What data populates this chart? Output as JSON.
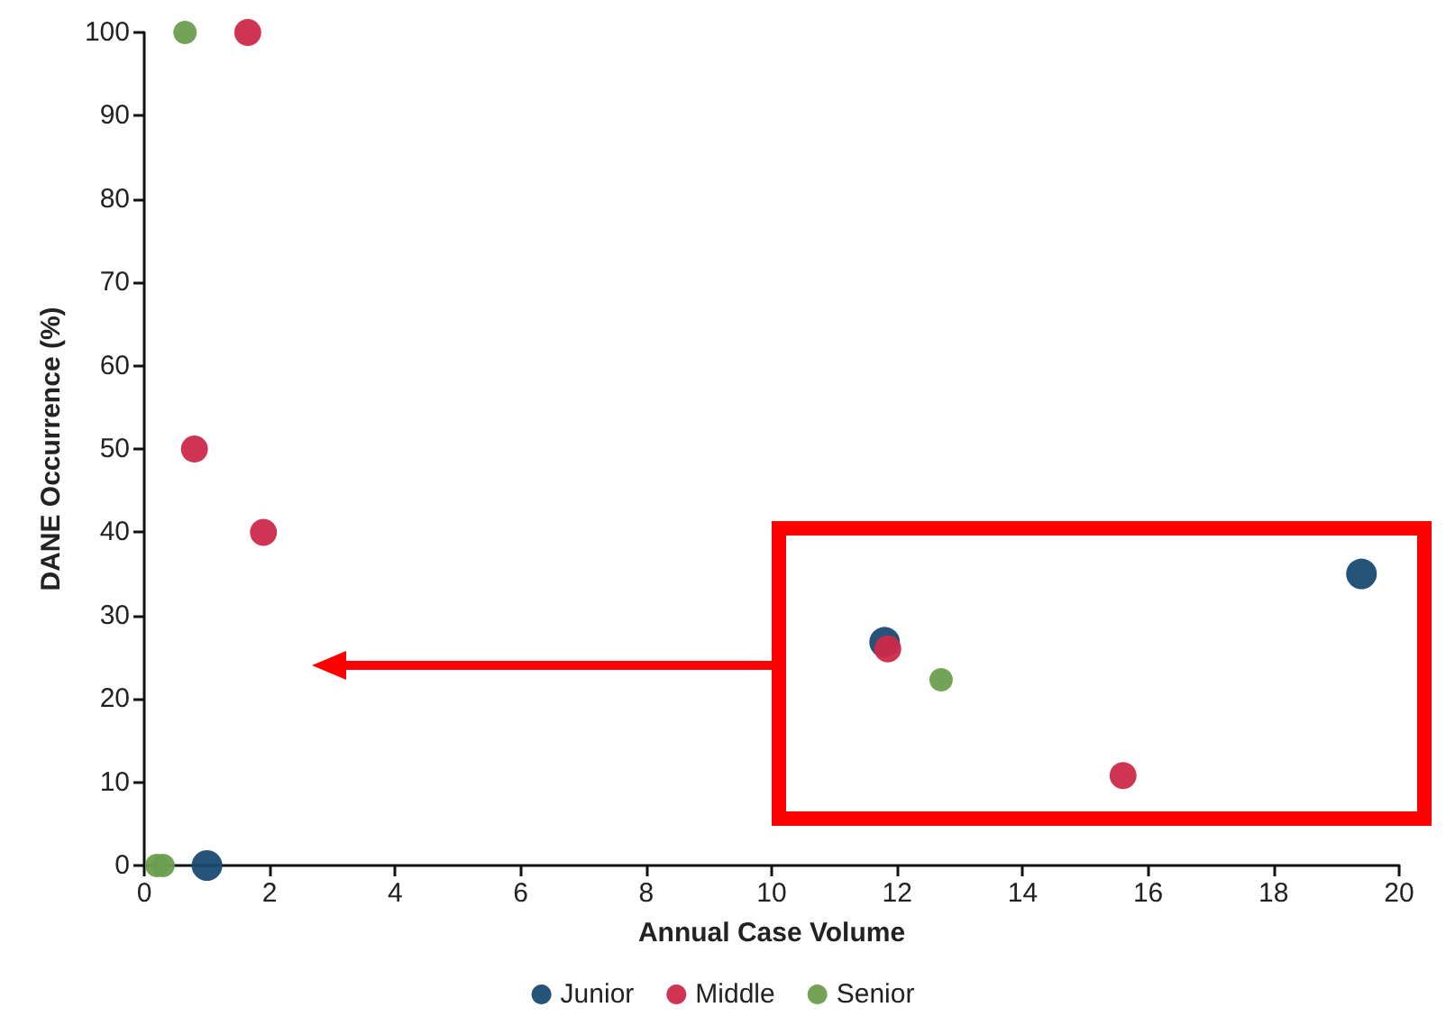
{
  "chart_data": {
    "type": "scatter",
    "xlabel": "Annual Case Volume",
    "ylabel": "DANE Occurrence (%)",
    "series": [
      {
        "name": "Junior",
        "color": "#1a4a72",
        "x": [
          1.0,
          11.8,
          19.4
        ],
        "values": [
          0,
          26.8,
          35
        ]
      },
      {
        "name": "Middle",
        "color": "#cc2a4a",
        "x": [
          1.65,
          0.8,
          1.9,
          11.85,
          15.6
        ],
        "values": [
          100,
          50,
          40,
          26,
          10.8
        ]
      },
      {
        "name": "Senior",
        "color": "#6a9e4e",
        "x": [
          0.65,
          0.2,
          0.3,
          12.7
        ],
        "values": [
          100,
          0,
          0,
          22.3
        ]
      }
    ],
    "xlim": [
      0,
      20
    ],
    "xticks": [
      0,
      2,
      4,
      6,
      8,
      10,
      12,
      14,
      16,
      18,
      20
    ],
    "ylim": [
      0,
      100
    ],
    "yticks": [
      0,
      10,
      20,
      30,
      40,
      50,
      60,
      70,
      80,
      90,
      100
    ],
    "grid": false,
    "legend": "bottom",
    "marker": "circle"
  }
}
